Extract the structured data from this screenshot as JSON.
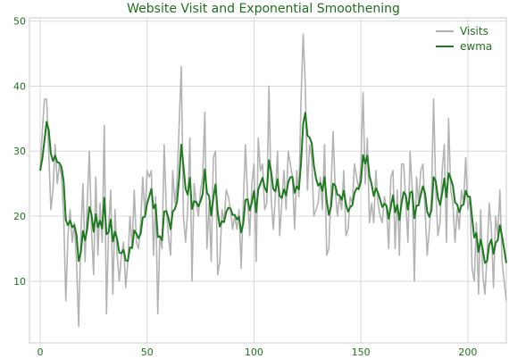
{
  "chart_data": {
    "type": "line",
    "title": "Website Visit and Exponential Smoothening",
    "xlabel": "",
    "ylabel": "",
    "xlim": [
      -5,
      218
    ],
    "ylim": [
      0.5,
      50.5
    ],
    "xticks": [
      0,
      50,
      100,
      150,
      200
    ],
    "yticks": [
      10,
      20,
      30,
      40,
      50
    ],
    "grid": true,
    "legend": "top-right",
    "series": [
      {
        "name": "Visits",
        "color": "#b3b3b3",
        "y": [
          27,
          33,
          38,
          38,
          30,
          21,
          24,
          31,
          25,
          28,
          26,
          20,
          7,
          17,
          21,
          16,
          19,
          13,
          3,
          17,
          25,
          13,
          22,
          30,
          18,
          11,
          26,
          14,
          22,
          16,
          34,
          5,
          18,
          24,
          8,
          21,
          14,
          10,
          14,
          16,
          9,
          13,
          20,
          15,
          24,
          16,
          15,
          19,
          26,
          20,
          27,
          26,
          27,
          14,
          23,
          5,
          17,
          15,
          31,
          21,
          17,
          14,
          27,
          22,
          25,
          34,
          43,
          20,
          16,
          21,
          32,
          10,
          25,
          22,
          20,
          24,
          26,
          36,
          15,
          22,
          13,
          29,
          30,
          11,
          13,
          21,
          19,
          24,
          23,
          21,
          18,
          20,
          18,
          21,
          12,
          22,
          31,
          23,
          17,
          25,
          28,
          13,
          32,
          27,
          28,
          21,
          22,
          40,
          23,
          18,
          23,
          30,
          17,
          22,
          27,
          21,
          30,
          28,
          26,
          18,
          27,
          23,
          38,
          48,
          40,
          24,
          31,
          29,
          20,
          21,
          22,
          26,
          21,
          31,
          14,
          15,
          24,
          33,
          24,
          20,
          23,
          21,
          27,
          17,
          18,
          23,
          22,
          28,
          26,
          24,
          28,
          39,
          25,
          32,
          19,
          22,
          19,
          27,
          22,
          20,
          19,
          23,
          21,
          15,
          26,
          27,
          15,
          24,
          14,
          28,
          28,
          22,
          16,
          30,
          24,
          10,
          26,
          22,
          27,
          28,
          21,
          14,
          18,
          23,
          38,
          24,
          17,
          19,
          27,
          31,
          16,
          35,
          24,
          22,
          16,
          21,
          18,
          24,
          22,
          29,
          21,
          23,
          12,
          10,
          19,
          8,
          21,
          11,
          8,
          14,
          22,
          18,
          9,
          20,
          17,
          24,
          13,
          10,
          7
        ]
      },
      {
        "name": "ewma",
        "color": "#1e7a1e",
        "y": [
          27,
          28.8,
          31.6,
          34.5,
          33.3,
          29.6,
          28.5,
          29.3,
          28.3,
          28.2,
          27.5,
          25.3,
          19.4,
          18.6,
          19.3,
          18.3,
          18.6,
          17.1,
          13.1,
          14.4,
          17.7,
          16.3,
          18.0,
          21.4,
          20.3,
          17.6,
          20.3,
          18.3,
          19.3,
          18.1,
          22.8,
          17.2,
          17.5,
          19.5,
          16.1,
          17.6,
          16.5,
          14.4,
          14.3,
          14.8,
          13.2,
          13.1,
          15.2,
          15.1,
          17.8,
          17.3,
          16.6,
          17.3,
          19.8,
          19.9,
          21.9,
          23.0,
          24.2,
          21.2,
          21.8,
          16.8,
          16.9,
          16.3,
          20.7,
          20.8,
          19.7,
          18.0,
          20.7,
          21.1,
          22.2,
          25.8,
          31.0,
          27.7,
          24.2,
          23.3,
          25.9,
          21.1,
          22.3,
          22.2,
          21.5,
          22.3,
          23.4,
          27.2,
          23.6,
          23.1,
          20.1,
          22.8,
          24.9,
          20.7,
          18.4,
          19.2,
          19.1,
          20.6,
          21.3,
          21.2,
          20.2,
          20.2,
          19.5,
          19.9,
          17.5,
          18.9,
          22.5,
          22.6,
          20.9,
          22.1,
          23.9,
          20.6,
          24.1,
          25.0,
          25.9,
          24.4,
          23.7,
          28.6,
          26.9,
          24.2,
          23.8,
          25.7,
          23.1,
          22.8,
          24.1,
          23.2,
          25.2,
          26.0,
          26.0,
          23.6,
          24.6,
          24.1,
          28.2,
          34.2,
          35.9,
          32.4,
          32.1,
          31.2,
          27.8,
          25.8,
          24.7,
          25.1,
          23.9,
          26.0,
          22.4,
          20.2,
          21.4,
          25.0,
          24.7,
          23.3,
          23.2,
          22.5,
          23.9,
          21.8,
          20.7,
          21.4,
          21.7,
          23.6,
          24.3,
          24.2,
          25.3,
          29.4,
          28.1,
          29.3,
          26.2,
          24.9,
          23.1,
          24.3,
          23.6,
          22.5,
          21.4,
          21.9,
          21.6,
          19.6,
          21.5,
          23.2,
          20.6,
          21.7,
          19.4,
          21.9,
          23.7,
          23.2,
          21.0,
          23.6,
          23.8,
          19.7,
          21.6,
          21.7,
          23.3,
          24.6,
          23.5,
          20.7,
          19.9,
          20.9,
          26.0,
          25.4,
          22.9,
          21.7,
          23.5,
          25.8,
          22.9,
          26.6,
          25.8,
          24.7,
          22.1,
          21.8,
          20.6,
          21.6,
          21.8,
          23.9,
          23.0,
          23.0,
          19.7,
          16.7,
          17.4,
          14.5,
          16.4,
          14.8,
          12.8,
          13.1,
          15.6,
          16.4,
          14.2,
          15.9,
          16.3,
          18.6,
          16.9,
          14.9,
          12.8
        ]
      }
    ]
  }
}
